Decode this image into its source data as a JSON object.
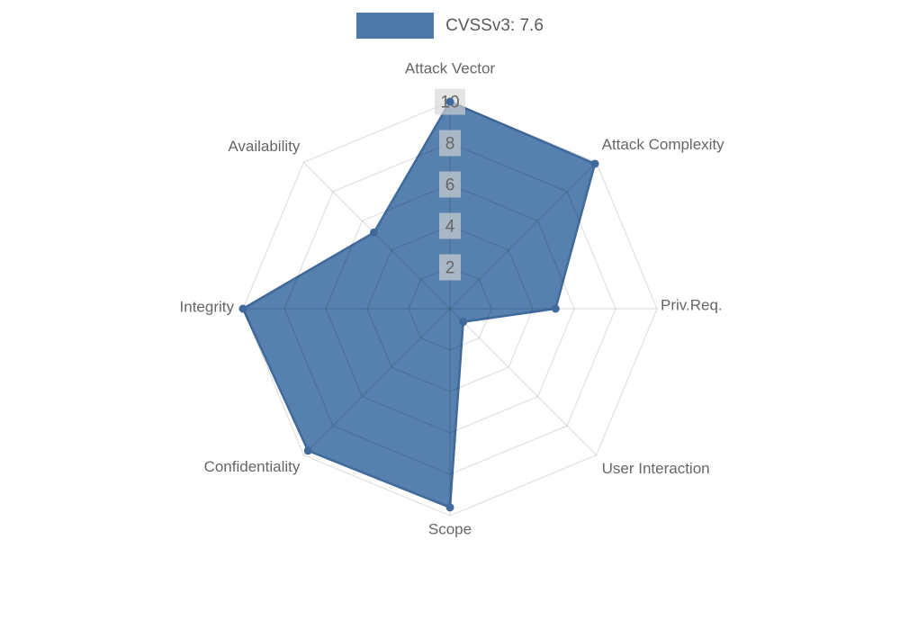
{
  "legend": {
    "position": "top",
    "swatch_icon": "filled-rect"
  },
  "chart_data": {
    "type": "radar",
    "title": "CVSSv3: 7.6",
    "score": "7.6",
    "categories": [
      "Attack Vector",
      "Attack Complexity",
      "Priv.Req.",
      "User Interaction",
      "Scope",
      "Confidentiality",
      "Integrity",
      "Availability"
    ],
    "series": [
      {
        "name": "CVSSv3: 7.6",
        "values": [
          10,
          9.9,
          5.1,
          0.9,
          9.6,
          9.7,
          10,
          5.2
        ]
      }
    ],
    "ticks": [
      2,
      4,
      6,
      8,
      10
    ],
    "rmin": 0,
    "rmax": 10,
    "grid": true,
    "legend_position": "top",
    "colors": {
      "fill": "#4d79a9",
      "fill_opacity": 0.95,
      "stroke": "#40699c",
      "point": "#40699c",
      "grid_line": "rgba(0,0,0,0.12)",
      "tick_backdrop": "rgba(213,213,213,0.65)",
      "tick_text": "#666666",
      "label_text": "#666666",
      "legend_text": "#595c5e"
    }
  }
}
